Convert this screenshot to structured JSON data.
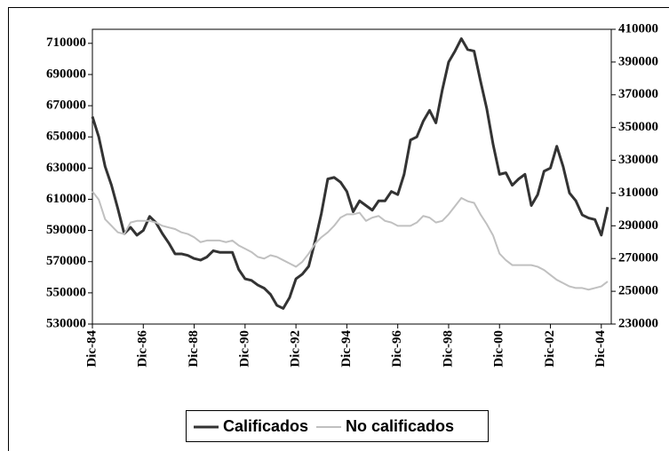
{
  "chart_data": {
    "type": "line",
    "categories": [
      "Dic-84",
      null,
      null,
      null,
      null,
      null,
      null,
      null,
      "Dic-86",
      null,
      null,
      null,
      null,
      null,
      null,
      null,
      "Dic-88",
      null,
      null,
      null,
      null,
      null,
      null,
      null,
      "Dic-90",
      null,
      null,
      null,
      null,
      null,
      null,
      null,
      "Dic-92",
      null,
      null,
      null,
      null,
      null,
      null,
      null,
      "Dic-94",
      null,
      null,
      null,
      null,
      null,
      null,
      null,
      "Dic-96",
      null,
      null,
      null,
      null,
      null,
      null,
      null,
      "Dic-98",
      null,
      null,
      null,
      null,
      null,
      null,
      null,
      "Dic-00",
      null,
      null,
      null,
      null,
      null,
      null,
      null,
      "Dic-02",
      null,
      null,
      null,
      null,
      null,
      null,
      null,
      "Dic-04",
      null
    ],
    "series": [
      {
        "name": "Calificados",
        "color": "#333333",
        "axis": "y",
        "values": [
          663000,
          650000,
          631000,
          619000,
          604000,
          588000,
          592000,
          587000,
          590000,
          599000,
          595000,
          588000,
          582000,
          575000,
          575000,
          574000,
          572000,
          571000,
          573000,
          577000,
          576000,
          576000,
          576000,
          565000,
          559000,
          558000,
          555000,
          553000,
          549000,
          542000,
          540000,
          547000,
          559000,
          562000,
          567000,
          583000,
          601000,
          623000,
          624000,
          621000,
          615000,
          602000,
          609000,
          606000,
          603000,
          609000,
          609000,
          615000,
          613000,
          626000,
          648000,
          650000,
          660000,
          667000,
          659000,
          680000,
          698000,
          705000,
          713000,
          706000,
          705000,
          686000,
          668000,
          645000,
          626000,
          627000,
          619000,
          623000,
          626000,
          606000,
          613000,
          628000,
          630000,
          644000,
          631000,
          614000,
          609000,
          600000,
          598000,
          597000,
          587000,
          605000
        ]
      },
      {
        "name": "No calificados",
        "color": "#c0c0c0",
        "axis": "y2",
        "values": [
          311000,
          306000,
          294000,
          290000,
          286000,
          285000,
          292000,
          293000,
          293000,
          293000,
          292000,
          290000,
          289000,
          288000,
          286000,
          285000,
          283000,
          280000,
          281000,
          281000,
          281000,
          280000,
          281000,
          278000,
          276000,
          274000,
          271000,
          270000,
          272000,
          271000,
          269000,
          267000,
          265000,
          268000,
          273000,
          279000,
          283000,
          286000,
          290000,
          295000,
          297000,
          297000,
          298000,
          293000,
          295000,
          296000,
          293000,
          292000,
          290000,
          290000,
          290000,
          292000,
          296000,
          295000,
          292000,
          293000,
          297000,
          302000,
          307000,
          305000,
          304000,
          297000,
          291000,
          284000,
          273000,
          269000,
          266000,
          266000,
          266000,
          266000,
          265000,
          263000,
          260000,
          257000,
          255000,
          253000,
          252000,
          252000,
          251000,
          252000,
          253000,
          256000
        ]
      }
    ],
    "ylim": [
      530000,
      719000
    ],
    "yticks": [
      530000,
      550000,
      570000,
      590000,
      610000,
      630000,
      650000,
      670000,
      690000,
      710000
    ],
    "y2lim": [
      230000,
      410000
    ],
    "y2ticks": [
      230000,
      250000,
      270000,
      290000,
      310000,
      330000,
      350000,
      370000,
      390000,
      410000
    ],
    "grid": false
  }
}
